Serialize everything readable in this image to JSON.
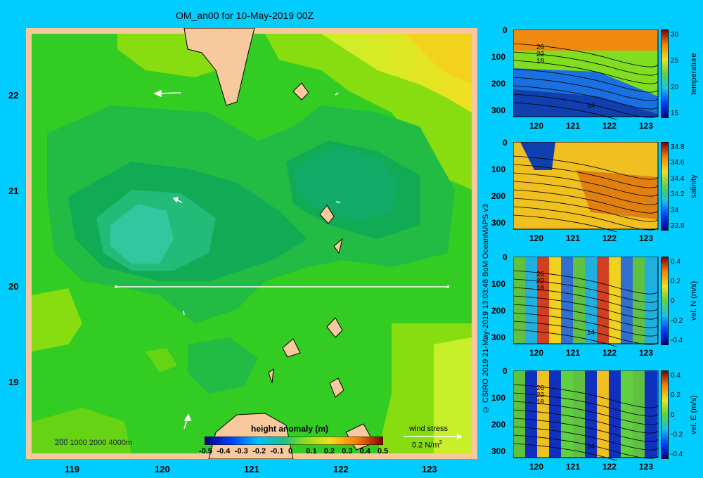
{
  "title": "OM_an00 for 10-May-2019 00Z",
  "map": {
    "x_ticks": [
      "119",
      "120",
      "121",
      "122",
      "123"
    ],
    "y_ticks": [
      "22",
      "21",
      "20",
      "19"
    ],
    "depth_legend": "200  1000  2000  4000m",
    "colorbar_title": "height anomaly (m)",
    "colorbar_ticks": [
      "-0.5",
      "-0.4",
      "-0.3",
      "-0.2",
      "-0.1",
      "0",
      "0.1",
      "0.2",
      "0.3",
      "0.4",
      "0.5"
    ],
    "wind_label": "wind stress",
    "wind_scale": "0.2 N/m",
    "wind_scale_sup": "2"
  },
  "sections": {
    "x_ticks": [
      "120",
      "121",
      "122",
      "123"
    ],
    "y_ticks": [
      "0",
      "100",
      "200",
      "300"
    ],
    "panels": [
      {
        "name": "temperature",
        "label": "temperature",
        "cb_ticks": [
          "30",
          "25",
          "20",
          "15"
        ],
        "contours": [
          "26",
          "22",
          "18",
          "14"
        ]
      },
      {
        "name": "salinity",
        "label": "salinity",
        "cb_ticks": [
          "34.8",
          "34.6",
          "34.4",
          "34.2",
          "34",
          "33.8"
        ],
        "contours": []
      },
      {
        "name": "velocity-n",
        "label": "vel. N (m/s)",
        "cb_ticks": [
          "0.4",
          "0.2",
          "0",
          "-0.2",
          "-0.4"
        ],
        "contours": [
          "26",
          "22",
          "18",
          "14"
        ]
      },
      {
        "name": "velocity-e",
        "label": "vel. E (m/s)",
        "cb_ticks": [
          "0.4",
          "0.2",
          "0",
          "-0.2",
          "-0.4"
        ],
        "contours": [
          "26",
          "22",
          "18",
          "14"
        ]
      }
    ]
  },
  "credit": "© CSIRO 2019   21-May-2019 13:03:48 BoM OceanMAPS v3"
}
